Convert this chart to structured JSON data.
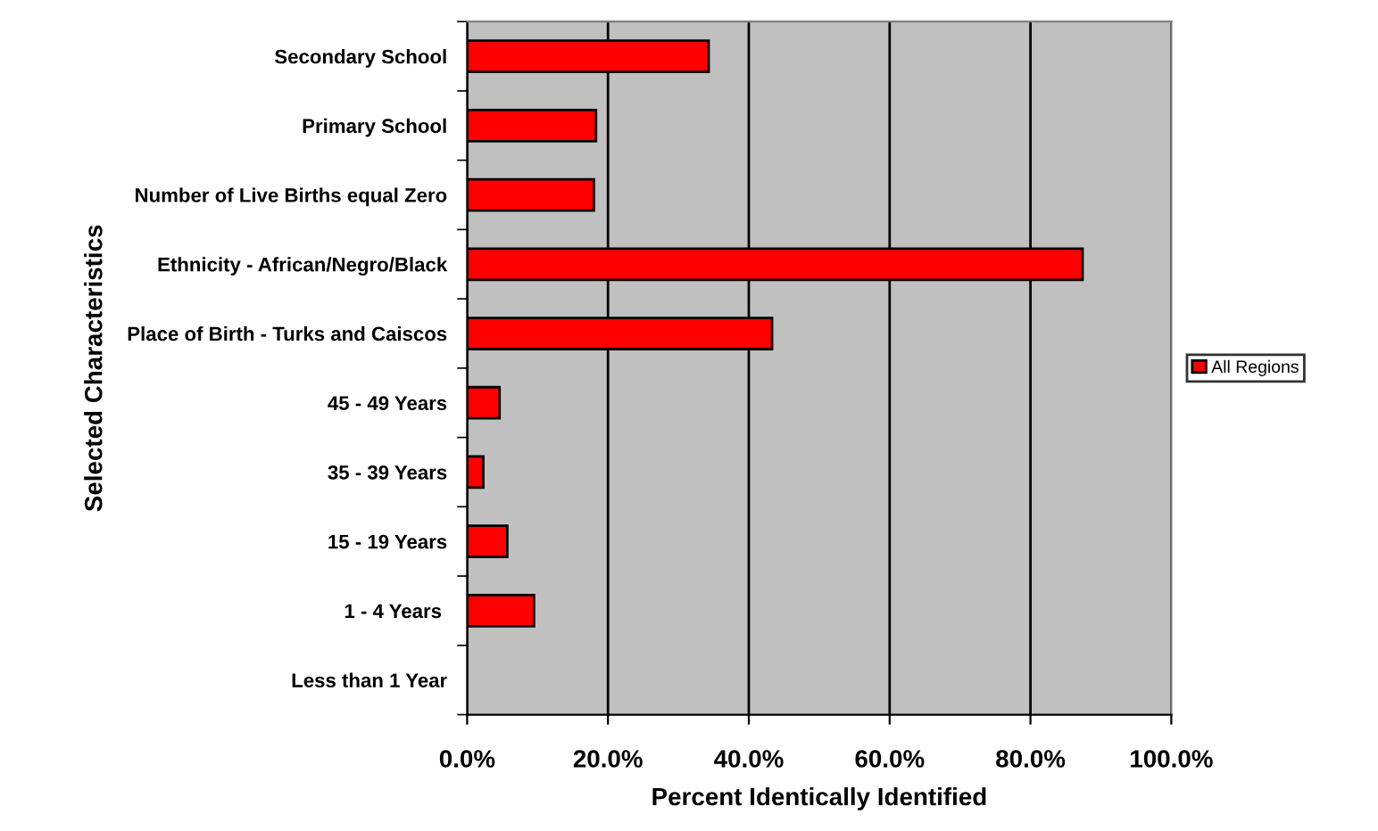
{
  "chart_data": {
    "type": "bar",
    "orientation": "horizontal",
    "xlabel": "Percent Identically Identified",
    "ylabel": "Selected Characteristics",
    "categories": [
      "Secondary School",
      "Primary School",
      "Number of Live Births equal Zero",
      "Ethnicity - African/Negro/Black",
      "Place of Birth - Turks and Caiscos",
      "45 - 49 Years",
      "35 - 39 Years",
      "15 - 19 Years",
      "1 - 4 Years ",
      "Less than 1 Year"
    ],
    "series": [
      {
        "name": "All Regions",
        "color": "#ff0000",
        "values": [
          34.3,
          18.3,
          18.0,
          87.4,
          43.3,
          4.6,
          2.3,
          5.7,
          9.5,
          0
        ]
      }
    ],
    "xlim": [
      0,
      100
    ],
    "xticks": [
      {
        "value": 0,
        "label": "0.0%"
      },
      {
        "value": 20,
        "label": "20.0%"
      },
      {
        "value": 40,
        "label": "40.0%"
      },
      {
        "value": 60,
        "label": "60.0%"
      },
      {
        "value": 80,
        "label": "80.0%"
      },
      {
        "value": 100,
        "label": "100.0%"
      }
    ],
    "grid": "x",
    "legend": "right"
  }
}
